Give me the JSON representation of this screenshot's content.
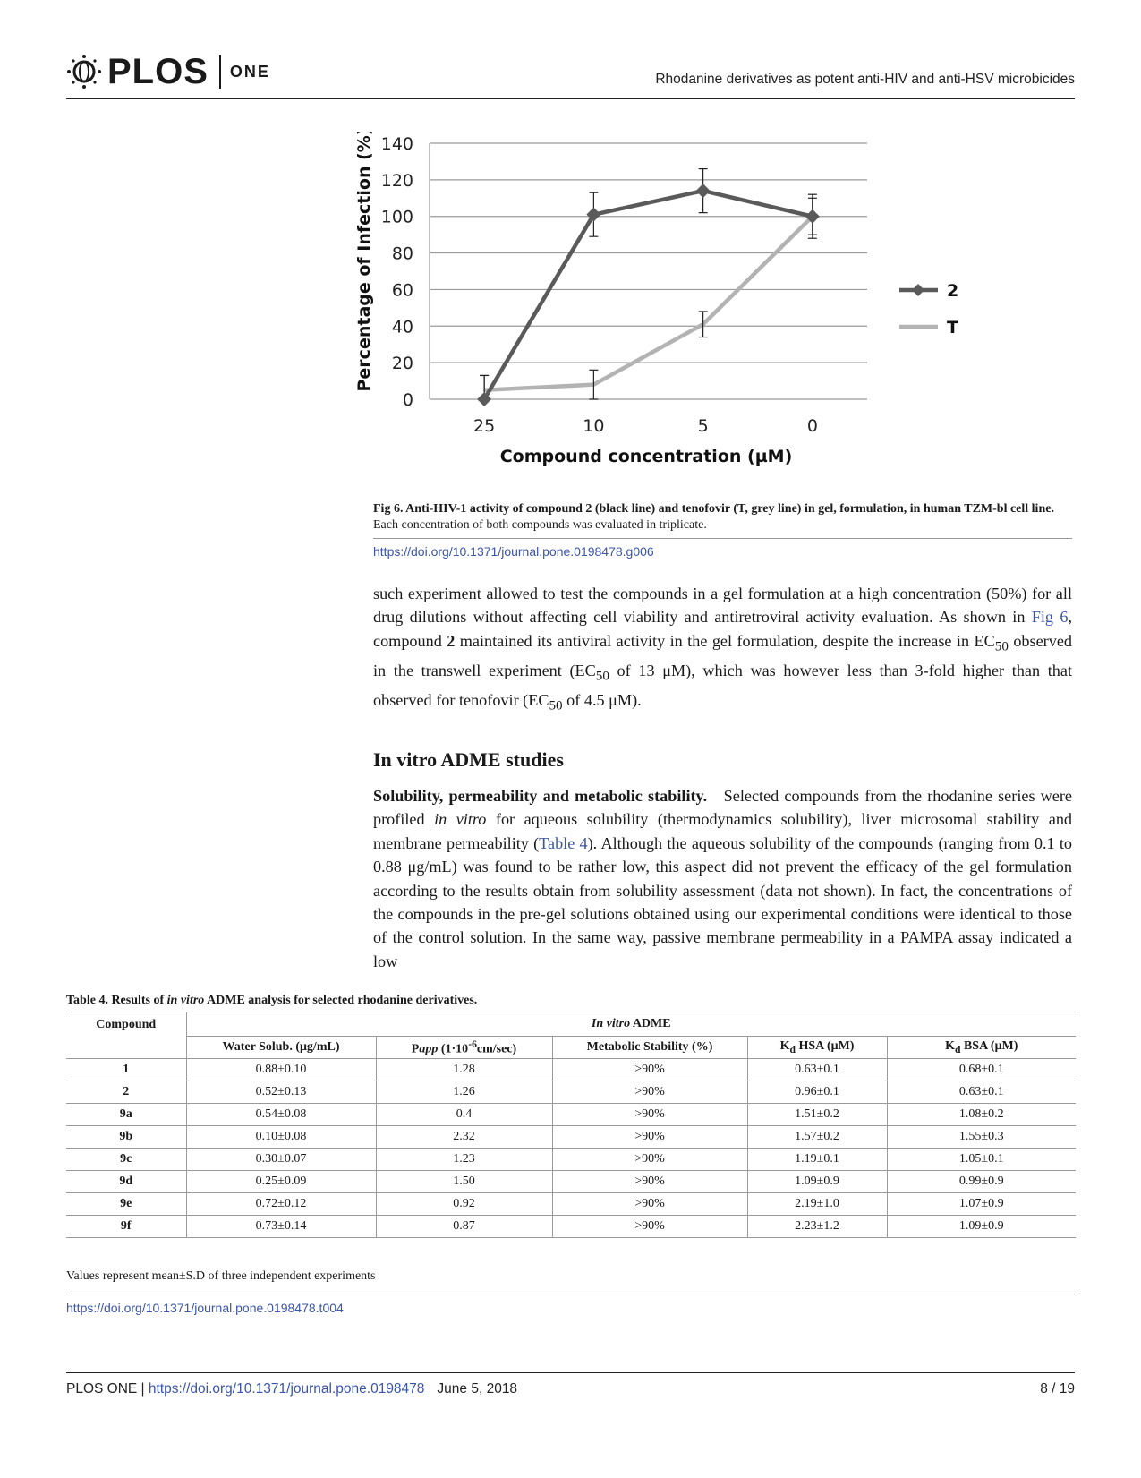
{
  "header": {
    "logo_text": "PLOS",
    "logo_sub": "ONE",
    "running_title": "Rhodanine derivatives as potent anti-HIV and anti-HSV microbicides"
  },
  "chart_data": {
    "type": "line",
    "categories": [
      "25",
      "10",
      "5",
      "0"
    ],
    "series": [
      {
        "name": "2",
        "values": [
          0,
          101,
          114,
          100
        ],
        "errors": [
          13,
          12,
          12,
          12
        ],
        "color": "#5a5a5a",
        "marker": "diamond"
      },
      {
        "name": "T",
        "values": [
          5,
          8,
          41,
          100
        ],
        "errors": [
          8,
          8,
          7,
          10
        ],
        "color": "#b3b3b3",
        "marker": "none"
      }
    ],
    "xlabel": "Compound concentration (µM)",
    "ylabel": "Percentage of Infection (%)",
    "ylim": [
      0,
      140
    ],
    "yticks": [
      0,
      20,
      40,
      60,
      80,
      100,
      120,
      140
    ],
    "grid": true,
    "legend": "right"
  },
  "figure": {
    "caption_bold": "Fig 6.  Anti-HIV-1 activity of compound 2 (black line) and tenofovir (T, grey line) in gel, formulation, in human TZM-bl cell line.",
    "caption_rest": " Each concentration of both compounds was evaluated in triplicate.",
    "doi": "https://doi.org/10.1371/journal.pone.0198478.g006"
  },
  "para1": {
    "t1": "such experiment allowed to test the compounds in a gel formulation at a high concentration (50%) for all drug dilutions without affecting cell viability and antiretroviral activity evaluation. As shown in ",
    "link": "Fig 6",
    "t2": ", compound ",
    "bold": "2",
    "t3": " maintained its antiviral activity in the gel formulation, despite the increase in EC",
    "sub1": "50",
    "t4": " observed in the transwell experiment (EC",
    "sub2": "50",
    "t5": " of 13 μM), which was however less than 3-fold higher than that observed for tenofovir (EC",
    "sub3": "50",
    "t6": " of 4.5 μM)."
  },
  "section": {
    "heading": "In vitro ADME studies"
  },
  "para2": {
    "bold": "Solubility, permeability and metabolic stability.",
    "t1": "   Selected compounds from the rhodanine series were profiled ",
    "italic": "in vitro",
    "t2": " for aqueous solubility (thermodynamics solubility), liver microsomal stability and membrane permeability (",
    "link": "Table 4",
    "t3": "). Although the aqueous solubility of the compounds (ranging from 0.1 to 0.88 μg/mL) was found to be rather low, this aspect did not prevent the efficacy of the gel formulation according to the results obtain from solubility assessment (data not shown). In fact, the concentrations of the compounds in the pre-gel solutions obtained using our experimental conditions were identical to those of the control solution. In the same way, passive membrane permeability in a PAMPA assay indicated a low"
  },
  "table": {
    "caption_pre": "Table 4.  Results of ",
    "caption_italic": "in vitro",
    "caption_post": " ADME analysis for selected rhodanine derivatives.",
    "col0": "Compound",
    "group_italic": "In vitro",
    "group_rest": " ADME",
    "headers": {
      "water": "Water Solub. (μg/mL)",
      "papp_a": "P",
      "papp_b": "app",
      "papp_c": " (1·10",
      "papp_sup": "-6",
      "papp_d": "cm/sec)",
      "metab": "Metabolic Stability (%)",
      "kd": "K",
      "kd_sub": "d",
      "hsa": " HSA (μM)",
      "bsa": " BSA (μM)"
    },
    "rows": [
      [
        "1",
        "0.88±0.10",
        "1.28",
        ">90%",
        "0.63±0.1",
        "0.68±0.1"
      ],
      [
        "2",
        "0.52±0.13",
        "1.26",
        ">90%",
        "0.96±0.1",
        "0.63±0.1"
      ],
      [
        "9a",
        "0.54±0.08",
        "0.4",
        ">90%",
        "1.51±0.2",
        "1.08±0.2"
      ],
      [
        "9b",
        "0.10±0.08",
        "2.32",
        ">90%",
        "1.57±0.2",
        "1.55±0.3"
      ],
      [
        "9c",
        "0.30±0.07",
        "1.23",
        ">90%",
        "1.19±0.1",
        "1.05±0.1"
      ],
      [
        "9d",
        "0.25±0.09",
        "1.50",
        ">90%",
        "1.09±0.9",
        "0.99±0.9"
      ],
      [
        "9e",
        "0.72±0.12",
        "0.92",
        ">90%",
        "2.19±1.0",
        "1.07±0.9"
      ],
      [
        "9f",
        "0.73±0.14",
        "0.87",
        ">90%",
        "2.23±1.2",
        "1.09±0.9"
      ]
    ],
    "note": "Values represent mean±S.D of three independent experiments",
    "doi": "https://doi.org/10.1371/journal.pone.0198478.t004"
  },
  "footer": {
    "journal": "PLOS ONE | ",
    "doi": "https://doi.org/10.1371/journal.pone.0198478",
    "date": "June 5, 2018",
    "page": "8 / 19"
  }
}
